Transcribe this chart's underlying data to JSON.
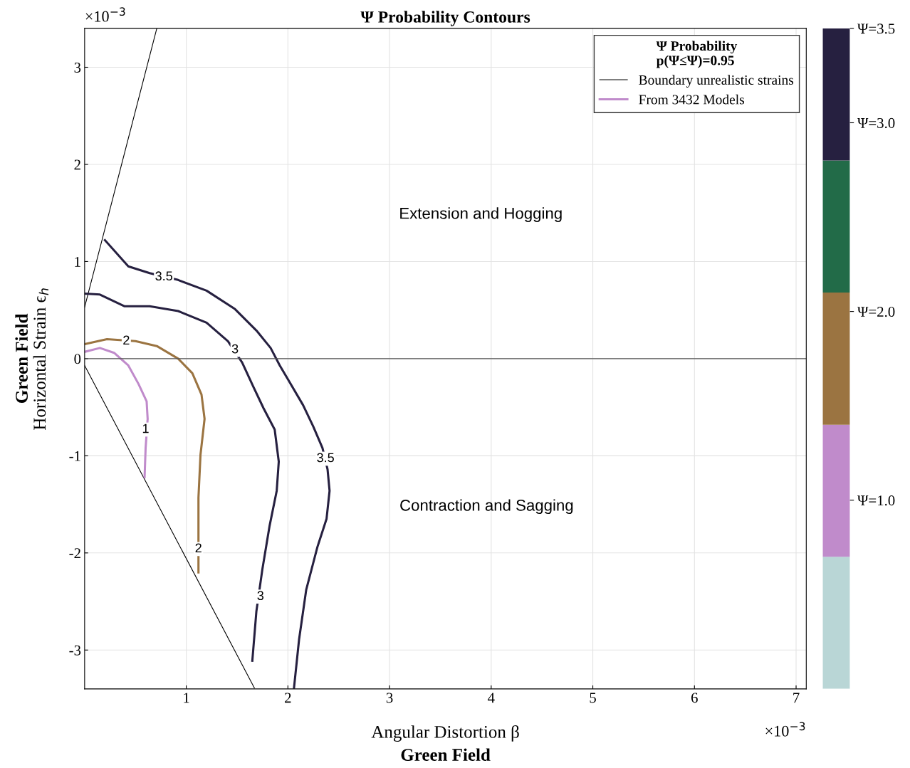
{
  "chart_data": [
    {
      "type": "line",
      "title": "Ψ Probability Contours",
      "xlabel": "Angular Distortion β\nGreen Field",
      "ylabel": "Green Field\nHorizontal Strain ϵ$_{h}$",
      "legend_title": "Ψ Probability\np(Ψ≤Ψ)=0.95",
      "legend": "top right",
      "grid": true,
      "xlim": [
        0,
        7.1
      ],
      "ylim": [
        -3.4,
        3.4
      ],
      "xticks": [
        1,
        2,
        3,
        4,
        5,
        6,
        7
      ],
      "yticks": [
        -3,
        -2,
        -1,
        0,
        1,
        2,
        3
      ],
      "ref_lines": [
        {
          "axis": "y",
          "value": 0,
          "color": "#555555"
        }
      ],
      "series": [
        {
          "name": "Boundary unrealistic strains",
          "color": "#000000",
          "x": [
            0,
            0.71
          ],
          "values": [
            0.53,
            3.4
          ]
        },
        {
          "color": "#000000",
          "x": [
            0,
            1.67
          ],
          "values": [
            -0.07,
            -3.39
          ]
        },
        {
          "name": "From 3432 Models",
          "color": "#c08bcb",
          "x": [
            0,
            0.15,
            0.29,
            0.43,
            0.53,
            0.61,
            0.62,
            0.6,
            0.59
          ],
          "values": [
            0.07,
            0.11,
            0.06,
            -0.07,
            -0.26,
            -0.44,
            -0.62,
            -0.92,
            -1.22
          ]
        },
        {
          "color": "#9b7441",
          "x": [
            0,
            0.22,
            0.5,
            0.71,
            0.92,
            1.06,
            1.15,
            1.18,
            1.14,
            1.12,
            1.12,
            1.12
          ],
          "values": [
            0.15,
            0.2,
            0.18,
            0.13,
            0,
            -0.15,
            -0.37,
            -0.62,
            -0.99,
            -1.43,
            -1.87,
            -2.2
          ]
        },
        {
          "color": "#262040",
          "x": [
            0,
            0.15,
            0.39,
            0.64,
            0.92,
            1.2,
            1.41,
            1.55,
            1.66,
            1.76,
            1.87,
            1.91,
            1.89,
            1.82,
            1.75,
            1.69,
            1.65
          ],
          "values": [
            0.67,
            0.66,
            0.54,
            0.54,
            0.49,
            0.37,
            0.18,
            -0.04,
            -0.29,
            -0.51,
            -0.73,
            -1.06,
            -1.36,
            -1.72,
            -2.16,
            -2.6,
            -3.11
          ]
        },
        {
          "color": "#262040",
          "x": [
            0.2,
            0.43,
            0.64,
            0.92,
            1.2,
            1.48,
            1.69,
            1.83,
            1.92,
            2.01,
            2.15,
            2.25,
            2.34,
            2.39,
            2.41,
            2.38,
            2.29,
            2.18,
            2.11,
            2.06
          ],
          "values": [
            1.22,
            0.95,
            0.88,
            0.81,
            0.7,
            0.51,
            0.29,
            0.11,
            -0.07,
            -0.23,
            -0.48,
            -0.7,
            -0.92,
            -1.14,
            -1.36,
            -1.65,
            -1.94,
            -2.38,
            -2.89,
            -3.39
          ]
        }
      ],
      "annotations": [
        {
          "text": "1",
          "x": 0.6,
          "y": -0.73
        },
        {
          "text": "2",
          "x": 0.41,
          "y": 0.18
        },
        {
          "text": "2",
          "x": 1.12,
          "y": -1.96
        },
        {
          "text": "3",
          "x": 1.48,
          "y": 0.09
        },
        {
          "text": "3",
          "x": 1.73,
          "y": -2.45
        },
        {
          "text": "3.5",
          "x": 0.78,
          "y": 0.84
        },
        {
          "text": "3.5",
          "x": 2.37,
          "y": -1.03
        },
        "Extension and Hogging",
        "Contraction and Sagging",
        "×10$^{−3}$",
        "×10$^{−3}$"
      ]
    },
    {
      "type": "bar",
      "stacked": true,
      "categories": [
        null
      ],
      "ylim": [
        0,
        3.5
      ],
      "tick_labels": "y",
      "yticks": [
        {
          "value": 1,
          "label": "Ψ=1.0"
        },
        {
          "value": 2,
          "label": "Ψ=2.0"
        },
        {
          "value": 3,
          "label": "Ψ=3.0"
        },
        {
          "value": 3.5,
          "label": "Ψ=3.5"
        }
      ],
      "series": [
        {
          "color": "#b9d6d6",
          "values": [
            0.7
          ]
        },
        {
          "color": "#c08bcb",
          "values": [
            0.7
          ]
        },
        {
          "color": "#9b7441",
          "values": [
            0.7
          ]
        },
        {
          "color": "#226b48",
          "values": [
            0.7
          ]
        },
        {
          "color": "#262040",
          "values": [
            0.7
          ]
        }
      ]
    }
  ]
}
